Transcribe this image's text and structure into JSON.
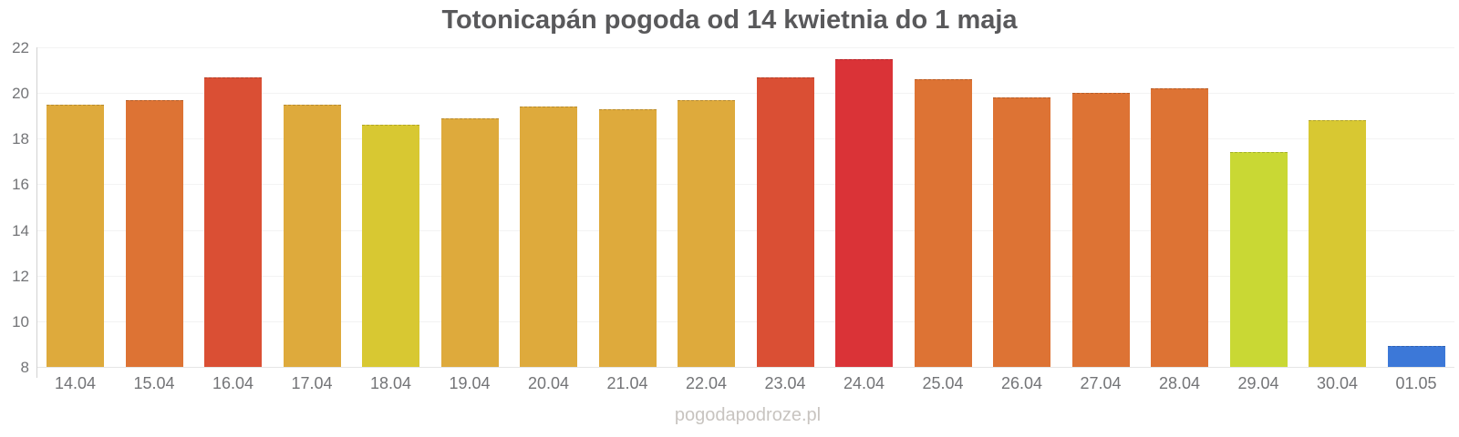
{
  "chart_data": {
    "type": "bar",
    "title": "Totonicapán pogoda od 14 kwietnia do 1 maja",
    "categories": [
      "14.04",
      "15.04",
      "16.04",
      "17.04",
      "18.04",
      "19.04",
      "20.04",
      "21.04",
      "22.04",
      "23.04",
      "24.04",
      "25.04",
      "26.04",
      "27.04",
      "28.04",
      "29.04",
      "30.04",
      "01.05"
    ],
    "values": [
      19.5,
      19.7,
      20.7,
      19.5,
      18.6,
      18.9,
      19.4,
      19.3,
      19.7,
      20.7,
      21.5,
      20.6,
      19.8,
      20.0,
      20.2,
      17.4,
      18.8,
      8.9
    ],
    "bar_colors": [
      "#deaa3c",
      "#dd7334",
      "#da4f34",
      "#deaa3c",
      "#d8c832",
      "#deaa3c",
      "#deaa3c",
      "#deaa3c",
      "#deaa3c",
      "#da4f34",
      "#da3337",
      "#dd7334",
      "#dd7334",
      "#dd7334",
      "#dd7334",
      "#c9d834",
      "#d8c832",
      "#3c78d8"
    ],
    "xlabel": "",
    "ylabel": "",
    "ylim": [
      8,
      22
    ],
    "y_ticks": [
      22,
      20,
      18,
      16,
      14,
      12,
      10,
      8
    ],
    "grid": "horizontal-faint",
    "legend": "none"
  },
  "watermark": "pogodapodroze.pl",
  "colors": {
    "background": "#ffffff",
    "title": "#59595b",
    "axis_label": "#737477",
    "axis_line": "#d2d2d2",
    "gridline": "#f3f3f3",
    "baseline": "#e5e5e5",
    "watermark": "#c8c4c0"
  }
}
